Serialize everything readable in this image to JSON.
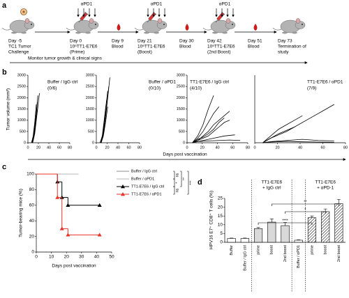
{
  "panel_labels": [
    "a",
    "b",
    "c",
    "d"
  ],
  "timeline": {
    "events": [
      [
        "Day -5",
        "TC1 Tumor",
        "Challenge"
      ],
      [
        "Day 0",
        "10⁶TT1-E7E6",
        "(Prime)"
      ],
      [
        "Day 9",
        "Blood"
      ],
      [
        "Day 21",
        "10⁶TT1-E7E6",
        "(Boost)"
      ],
      [
        "Day 30",
        "Blood"
      ],
      [
        "Day 42",
        "10⁶TT1-E7E6",
        "(2nd Boost)"
      ],
      [
        "Day 51",
        "Blood"
      ],
      [
        "Day 73",
        "Termination of",
        "study"
      ]
    ],
    "treatments": [
      "αPD1",
      "αPD1",
      "αPD1"
    ],
    "monitor": "Monitor tumor growth & clinical signs"
  },
  "chart_data": [
    {
      "type": "line",
      "title": "Buffer / IgG ctrl",
      "subtitle": "(0/6)",
      "ylabel": "Tumor volume (mm³)",
      "xlabel": "Days post vaccination",
      "color": "#000000",
      "xlim": [
        0,
        80
      ],
      "ylim": [
        0,
        3000
      ],
      "xticks": [
        0,
        20,
        40,
        60,
        80
      ],
      "yticks": [
        0,
        500,
        1000,
        1500,
        2000,
        2500,
        3000
      ],
      "series": [
        {
          "x": [
            7,
            10,
            13,
            16
          ],
          "values": [
            0,
            300,
            900,
            1700
          ]
        },
        {
          "x": [
            7,
            10,
            13,
            17
          ],
          "values": [
            0,
            250,
            700,
            1500
          ]
        },
        {
          "x": [
            8,
            11,
            14,
            18
          ],
          "values": [
            0,
            200,
            800,
            1800
          ]
        },
        {
          "x": [
            8,
            12,
            15,
            19
          ],
          "values": [
            0,
            350,
            1100,
            2100
          ]
        },
        {
          "x": [
            9,
            12,
            15,
            20,
            22
          ],
          "values": [
            0,
            300,
            900,
            1800,
            2200
          ]
        },
        {
          "x": [
            9,
            13,
            16,
            19
          ],
          "values": [
            0,
            400,
            1000,
            1600
          ]
        }
      ]
    },
    {
      "type": "line",
      "title": "Buffer / αPD1",
      "subtitle": "(0/10)",
      "color": "#000000",
      "xlim": [
        0,
        80
      ],
      "ylim": [
        0,
        3000
      ],
      "xticks": [
        0,
        20,
        40,
        60,
        80
      ],
      "yticks": [
        0,
        500,
        1000,
        1500,
        2000,
        2500,
        3000
      ],
      "series": [
        {
          "x": [
            7,
            11,
            14,
            18
          ],
          "values": [
            0,
            300,
            900,
            1700
          ]
        },
        {
          "x": [
            7,
            11,
            15,
            19
          ],
          "values": [
            0,
            250,
            1000,
            1900
          ]
        },
        {
          "x": [
            8,
            12,
            16,
            21
          ],
          "values": [
            0,
            350,
            1200,
            2300
          ]
        },
        {
          "x": [
            8,
            12,
            17,
            22,
            25
          ],
          "values": [
            0,
            300,
            1100,
            2200,
            2900
          ]
        },
        {
          "x": [
            9,
            13,
            17,
            21
          ],
          "values": [
            0,
            300,
            900,
            1600
          ]
        },
        {
          "x": [
            9,
            14,
            18,
            23
          ],
          "values": [
            0,
            500,
            1400,
            2500
          ]
        }
      ]
    },
    {
      "type": "line",
      "title": "TT1-E7E6 / IgG ctrl",
      "subtitle": "(4/10)",
      "color": "#000000",
      "xlim": [
        0,
        80
      ],
      "ylim": [
        0,
        3000
      ],
      "xticks": [
        0,
        20,
        40,
        60,
        80
      ],
      "yticks": [
        0,
        500,
        1000,
        1500,
        2000,
        2500,
        3000
      ],
      "series": [
        {
          "x": [
            7,
            14,
            21,
            28,
            35
          ],
          "values": [
            0,
            300,
            800,
            1500,
            2100
          ]
        },
        {
          "x": [
            7,
            14,
            21,
            28,
            35,
            42
          ],
          "values": [
            0,
            200,
            500,
            900,
            1300,
            1600
          ]
        },
        {
          "x": [
            7,
            14,
            21,
            28,
            35,
            42,
            49,
            56
          ],
          "values": [
            0,
            100,
            300,
            500,
            800,
            1000,
            1200,
            1400
          ]
        },
        {
          "x": [
            7,
            14,
            21,
            28,
            35,
            42,
            49,
            56
          ],
          "values": [
            0,
            100,
            200,
            300,
            500,
            700,
            900,
            1000
          ]
        },
        {
          "x": [
            7,
            14,
            21,
            28,
            35,
            42,
            49
          ],
          "values": [
            0,
            150,
            250,
            400,
            600,
            900,
            1100
          ]
        },
        {
          "x": [
            7,
            14,
            21,
            35,
            49,
            63
          ],
          "values": [
            0,
            50,
            100,
            200,
            300,
            350
          ]
        },
        {
          "x": [
            7,
            14,
            28,
            42,
            56,
            70
          ],
          "values": [
            0,
            50,
            80,
            100,
            120,
            100
          ]
        }
      ]
    },
    {
      "type": "line",
      "title": "TT1-E7E6 / αPD1",
      "subtitle": "(7/9)",
      "color": "#000000",
      "xlim": [
        0,
        80
      ],
      "ylim": [
        0,
        3000
      ],
      "xticks": [
        0,
        20,
        40,
        60,
        80
      ],
      "series": [
        {
          "x": [
            7,
            14,
            21,
            35,
            49,
            63,
            70
          ],
          "values": [
            0,
            200,
            400,
            700,
            1100,
            1500,
            1700
          ]
        },
        {
          "x": [
            7,
            14,
            21,
            28,
            35,
            42
          ],
          "values": [
            0,
            300,
            600,
            800,
            1000,
            1200
          ]
        },
        {
          "x": [
            7,
            14,
            21,
            28,
            35
          ],
          "values": [
            0,
            200,
            350,
            500,
            700
          ]
        },
        {
          "x": [
            7,
            14,
            28,
            42,
            56,
            70
          ],
          "values": [
            0,
            50,
            100,
            150,
            100,
            80
          ]
        },
        {
          "x": [
            7,
            14,
            28,
            42,
            56,
            70
          ],
          "values": [
            0,
            30,
            60,
            40,
            30,
            20
          ]
        }
      ]
    },
    {
      "type": "step",
      "xlabel": "Days post vaccination",
      "ylabel": "Tumor-bearing mice (%)",
      "xlim": [
        0,
        50
      ],
      "ylim": [
        0,
        100
      ],
      "xticks": [
        0,
        10,
        20,
        30,
        40,
        50
      ],
      "yticks": [
        0,
        20,
        40,
        60,
        80,
        100
      ],
      "series": [
        {
          "name": "Buffer / IgG ctrl",
          "color": "#8c8c8c",
          "marker": "none",
          "x": [
            0,
            28
          ],
          "values": [
            100,
            100
          ]
        },
        {
          "name": "Buffer / αPD1",
          "color": "#b5b5b5",
          "marker": "none",
          "x": [
            0,
            28
          ],
          "values": [
            100,
            100
          ]
        },
        {
          "name": "TT1-E7E6 / IgG ctrl",
          "color": "#000000",
          "marker": "triangle",
          "x": [
            0,
            14,
            17,
            21,
            42
          ],
          "values": [
            100,
            90,
            70,
            60,
            60
          ]
        },
        {
          "name": "TT1-E7E6 / αPD1",
          "color": "#e8322a",
          "marker": "triangle",
          "x": [
            0,
            14,
            17,
            21,
            42
          ],
          "values": [
            100,
            70,
            30,
            22,
            22
          ]
        }
      ],
      "annotations": [
        "ns",
        "*",
        "**",
        "ns",
        "***"
      ]
    },
    {
      "type": "bar",
      "ylabel": "HPV16 E7⁺ CD8⁺ T cells (%)",
      "ylim": [
        0,
        25
      ],
      "yticks": [
        0,
        5,
        10,
        15,
        20,
        25
      ],
      "categories": [
        "Buffer",
        "Buffer / IgG ctrl",
        "prime",
        "boost",
        "2nd boost",
        "Buffer / αPD1",
        "prime",
        "boost",
        "2nd boost"
      ],
      "values": [
        2.2,
        2.2,
        7.8,
        11.5,
        9.5,
        1.2,
        14,
        17.5,
        22
      ],
      "errors": [
        0.2,
        0.2,
        0.6,
        1.8,
        1.8,
        0.2,
        1,
        1.5,
        2.5
      ],
      "fills": [
        "#ffffff",
        "#ffffff",
        "#d9d9d9",
        "#d9d9d9",
        "#d9d9d9",
        "#ffffff",
        "#ffffff",
        "#ffffff",
        "#ffffff"
      ],
      "hatched": [
        false,
        false,
        false,
        false,
        false,
        false,
        true,
        true,
        true
      ],
      "group_labels": [
        [
          "TT1-E7E6",
          "+ IgG ctrl"
        ],
        [
          "TT1-E7E6",
          "+ αPD-1"
        ]
      ],
      "annotations": [
        "**",
        "*",
        "****"
      ]
    }
  ]
}
